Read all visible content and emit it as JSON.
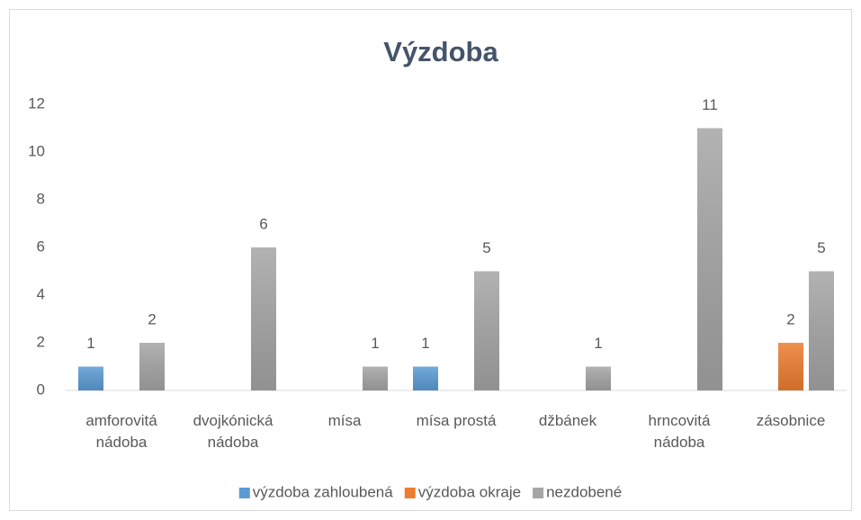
{
  "chart_data": {
    "type": "bar",
    "title": "Výzdoba",
    "categories": [
      "amforovitá nádoba",
      "dvojkónická nádoba",
      "mísa",
      "mísa prostá",
      "džbánek",
      "hrncovitá nádoba",
      "zásobnice"
    ],
    "series": [
      {
        "name": "výzdoba zahloubená",
        "color": "#5b9bd5",
        "values": [
          1,
          null,
          null,
          1,
          null,
          null,
          null
        ]
      },
      {
        "name": "výzdoba okraje",
        "color": "#ed7d31",
        "values": [
          null,
          null,
          null,
          null,
          null,
          null,
          2
        ]
      },
      {
        "name": "nezdobené",
        "color": "#a5a5a5",
        "values": [
          2,
          6,
          1,
          5,
          1,
          11,
          5
        ]
      }
    ],
    "ylim": [
      0,
      12
    ],
    "yticks": [
      0,
      2,
      4,
      6,
      8,
      10,
      12
    ],
    "grid": false,
    "legend": "bottom"
  }
}
